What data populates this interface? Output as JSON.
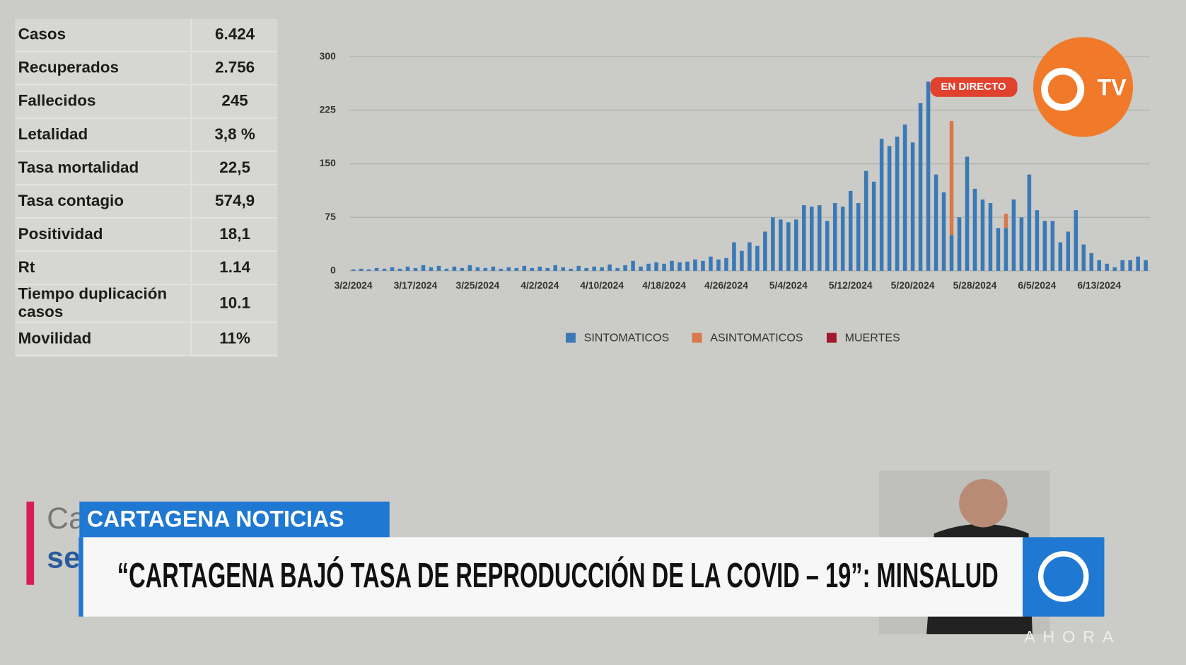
{
  "table": {
    "rows": [
      [
        "Casos",
        "6.424"
      ],
      [
        "Recuperados",
        "2.756"
      ],
      [
        "Fallecidos",
        "245"
      ],
      [
        "Letalidad",
        "3,8 %"
      ],
      [
        "Tasa mortalidad",
        "22,5"
      ],
      [
        "Tasa contagio",
        "574,9"
      ],
      [
        "Positividad",
        "18,1"
      ],
      [
        "Rt",
        "1.14"
      ],
      [
        "Tiempo duplicación casos",
        "10.1"
      ],
      [
        "Movilidad",
        "11%"
      ]
    ]
  },
  "chart_data": {
    "type": "bar",
    "stacked": true,
    "categories": [
      "3/2/2024",
      null,
      null,
      null,
      null,
      null,
      null,
      null,
      "3/17/2024",
      null,
      null,
      null,
      null,
      null,
      null,
      null,
      "3/25/2024",
      null,
      null,
      null,
      null,
      null,
      null,
      null,
      "4/2/2024",
      null,
      null,
      null,
      null,
      null,
      null,
      null,
      "4/10/2024",
      null,
      null,
      null,
      null,
      null,
      null,
      null,
      "4/18/2024",
      null,
      null,
      null,
      null,
      null,
      null,
      null,
      "4/26/2024",
      null,
      null,
      null,
      null,
      null,
      null,
      null,
      "5/4/2024",
      null,
      null,
      null,
      null,
      null,
      null,
      null,
      "5/12/2024",
      null,
      null,
      null,
      null,
      null,
      null,
      null,
      "5/20/2024",
      null,
      null,
      null,
      null,
      null,
      null,
      null,
      "5/28/2024",
      null,
      null,
      null,
      null,
      null,
      null,
      null,
      "6/5/2024",
      null,
      null,
      null,
      null,
      null,
      null,
      null,
      "6/13/2024",
      null,
      null,
      null,
      null,
      null,
      null
    ],
    "series": [
      {
        "name": "SINTOMATICOS",
        "color": "#3b79b6",
        "values": [
          2,
          3,
          2,
          4,
          3,
          5,
          3,
          6,
          4,
          8,
          5,
          7,
          3,
          6,
          4,
          8,
          5,
          4,
          6,
          3,
          5,
          4,
          7,
          4,
          6,
          4,
          8,
          5,
          3,
          7,
          4,
          6,
          5,
          9,
          4,
          8,
          14,
          6,
          10,
          12,
          10,
          14,
          12,
          13,
          16,
          14,
          20,
          16,
          18,
          40,
          28,
          40,
          35,
          55,
          75,
          72,
          68,
          72,
          92,
          90,
          92,
          70,
          95,
          90,
          112,
          95,
          140,
          125,
          185,
          175,
          188,
          205,
          180,
          235,
          265,
          135,
          110,
          50,
          75,
          160,
          115,
          100,
          95,
          60,
          60,
          100,
          75,
          135,
          85,
          70,
          70,
          40,
          55,
          85,
          37,
          25,
          15,
          10,
          5,
          15,
          15,
          20,
          15
        ]
      },
      {
        "name": "ASINTOMATICOS",
        "color": "#d9784a",
        "values": [
          0,
          0,
          0,
          0,
          0,
          0,
          0,
          0,
          0,
          0,
          0,
          0,
          0,
          0,
          0,
          0,
          0,
          0,
          0,
          0,
          0,
          0,
          0,
          0,
          0,
          0,
          0,
          0,
          0,
          0,
          0,
          0,
          0,
          0,
          0,
          0,
          0,
          0,
          0,
          0,
          0,
          0,
          0,
          0,
          0,
          0,
          0,
          0,
          0,
          0,
          0,
          0,
          0,
          0,
          0,
          0,
          0,
          0,
          0,
          0,
          0,
          0,
          0,
          0,
          0,
          0,
          0,
          0,
          0,
          0,
          0,
          0,
          0,
          0,
          0,
          0,
          0,
          160,
          0,
          0,
          0,
          0,
          0,
          0,
          20,
          0,
          0,
          0,
          0,
          0,
          0,
          0,
          0,
          0,
          0,
          0,
          0,
          0,
          0,
          0,
          0,
          0,
          0
        ]
      },
      {
        "name": "MUERTES",
        "color": "#a3182c",
        "values": [
          0,
          0,
          0,
          0,
          0,
          0,
          0,
          0,
          0,
          0,
          0,
          0,
          0,
          0,
          0,
          0,
          0,
          0,
          0,
          0,
          0,
          0,
          0,
          0,
          0,
          0,
          0,
          0,
          0,
          0,
          0,
          0,
          0,
          0,
          0,
          0,
          0,
          0,
          0,
          0,
          0,
          0,
          0,
          0,
          0,
          0,
          0,
          0,
          0,
          0,
          0,
          0,
          0,
          0,
          0,
          0,
          0,
          0,
          0,
          0,
          0,
          0,
          0,
          0,
          0,
          0,
          0,
          0,
          0,
          0,
          0,
          0,
          0,
          0,
          0,
          0,
          0,
          0,
          0,
          0,
          0,
          0,
          0,
          0,
          0,
          0,
          0,
          0,
          0,
          0,
          0,
          0,
          0,
          0,
          0,
          0,
          0,
          0,
          0,
          0,
          0,
          0,
          0
        ]
      }
    ],
    "ylim": [
      0,
      300
    ],
    "yticks": [
      0,
      75,
      150,
      225,
      300
    ],
    "grid": true,
    "legend": "bottom"
  },
  "live_badge": "EN DIRECTO",
  "channel_logo": "TV",
  "lower_third": {
    "background_text": [
      "Ca",
      "se"
    ],
    "section": "CARTAGENA NOTICIAS",
    "headline": "“CARTAGENA BAJÓ TASA DE REPRODUCCIÓN DE LA COVID – 19”: MINSALUD"
  },
  "watermark": "AHORA"
}
